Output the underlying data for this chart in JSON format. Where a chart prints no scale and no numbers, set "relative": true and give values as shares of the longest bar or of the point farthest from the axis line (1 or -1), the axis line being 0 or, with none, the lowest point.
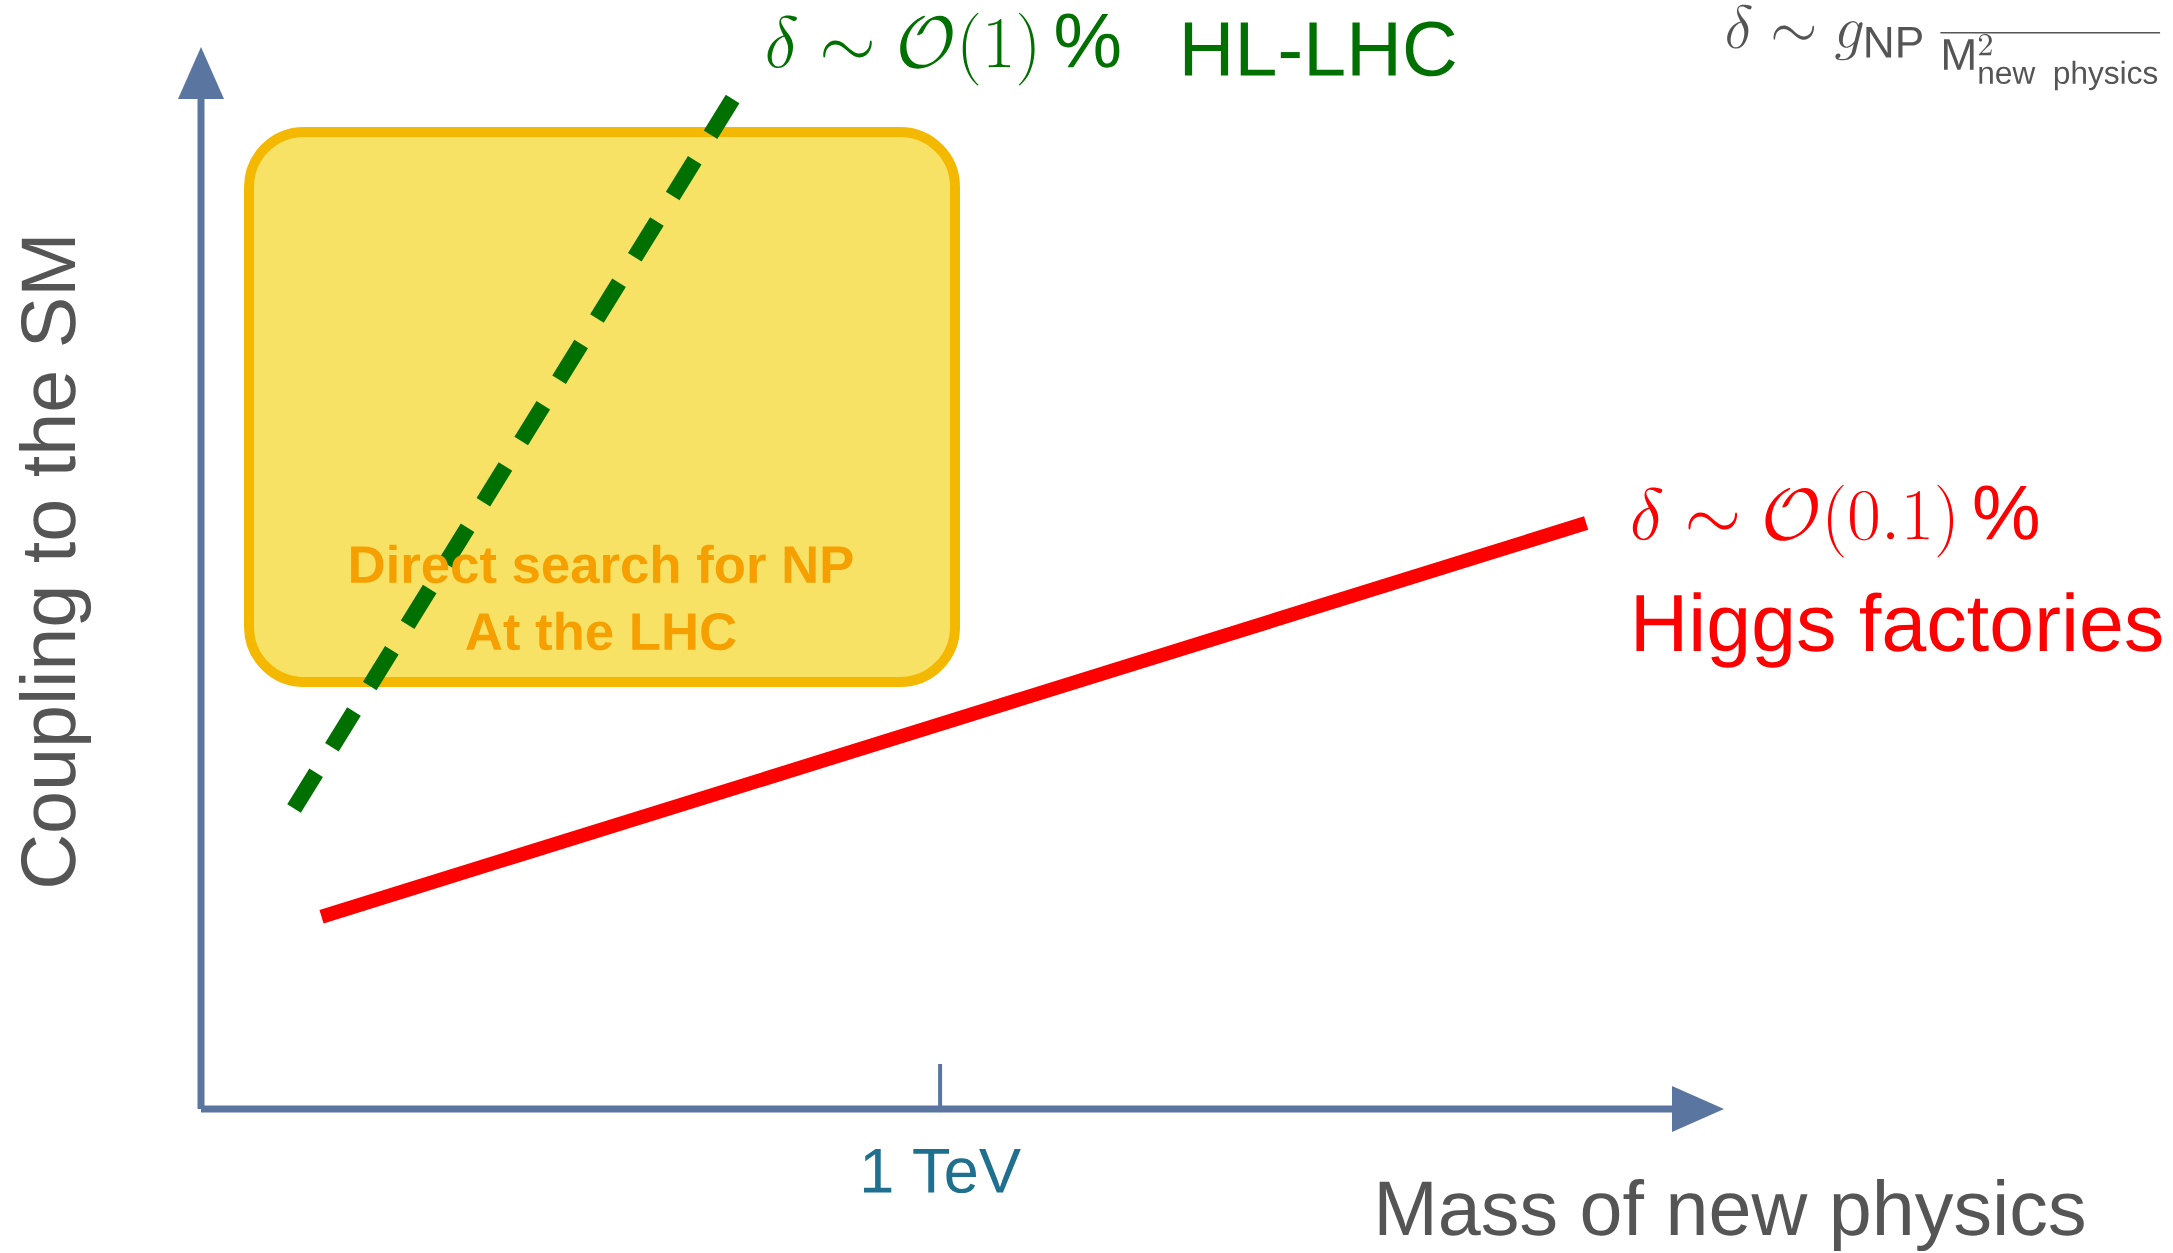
{
  "chart_data": {
    "type": "line",
    "relative": true,
    "xlabel": "Mass of new physics",
    "ylabel": "Coupling to the SM",
    "categories": [
      null,
      null,
      null,
      null,
      null,
      null,
      null,
      null,
      null,
      null,
      null,
      null,
      null,
      null,
      null,
      null,
      null,
      null,
      null,
      null,
      null,
      null,
      null,
      null,
      null,
      null,
      null,
      null,
      null,
      null,
      null,
      null,
      null,
      null,
      null,
      null,
      null,
      null,
      null,
      null,
      null,
      null,
      null,
      null,
      null,
      null,
      null,
      null
    ],
    "series": [
      {
        "name": "HL-LHC",
        "color": "#007000",
        "line_style": "dashed",
        "values": [
          0.297,
          null,
          null,
          null,
          null,
          null,
          null,
          null,
          null,
          null,
          null,
          null,
          null,
          null,
          null,
          null,
          1,
          null,
          null,
          null,
          null,
          null,
          null,
          null,
          null,
          null,
          null,
          null,
          null,
          null,
          null,
          null,
          null,
          null,
          null,
          null,
          null,
          null,
          null,
          null,
          null,
          null,
          null,
          null,
          null,
          null,
          null,
          null
        ]
      },
      {
        "name": "Higgs factories",
        "color": "#ff0000",
        "line_style": "solid",
        "values": [
          null,
          0.19,
          null,
          null,
          null,
          null,
          null,
          null,
          null,
          null,
          null,
          null,
          null,
          null,
          null,
          null,
          null,
          null,
          null,
          null,
          null,
          null,
          null,
          null,
          null,
          null,
          null,
          null,
          null,
          null,
          null,
          null,
          null,
          null,
          null,
          null,
          null,
          null,
          null,
          null,
          null,
          null,
          null,
          null,
          null,
          null,
          null,
          0.579
        ]
      }
    ],
    "annotations": [
      "\\delta \\sim \\mathcal{O}(1)\\,\\%",
      "\\delta \\sim \\mathcal{O}(0.1)\\,\\%",
      "Direct search for NP",
      "At the LHC",
      "\\delta \\sim g_{\\mathrm{NP}}\\,\\frac{}{\\mathrm{M}^2_{\\mathrm{new\\ physics}}}",
      "1 TeV"
    ]
  }
}
